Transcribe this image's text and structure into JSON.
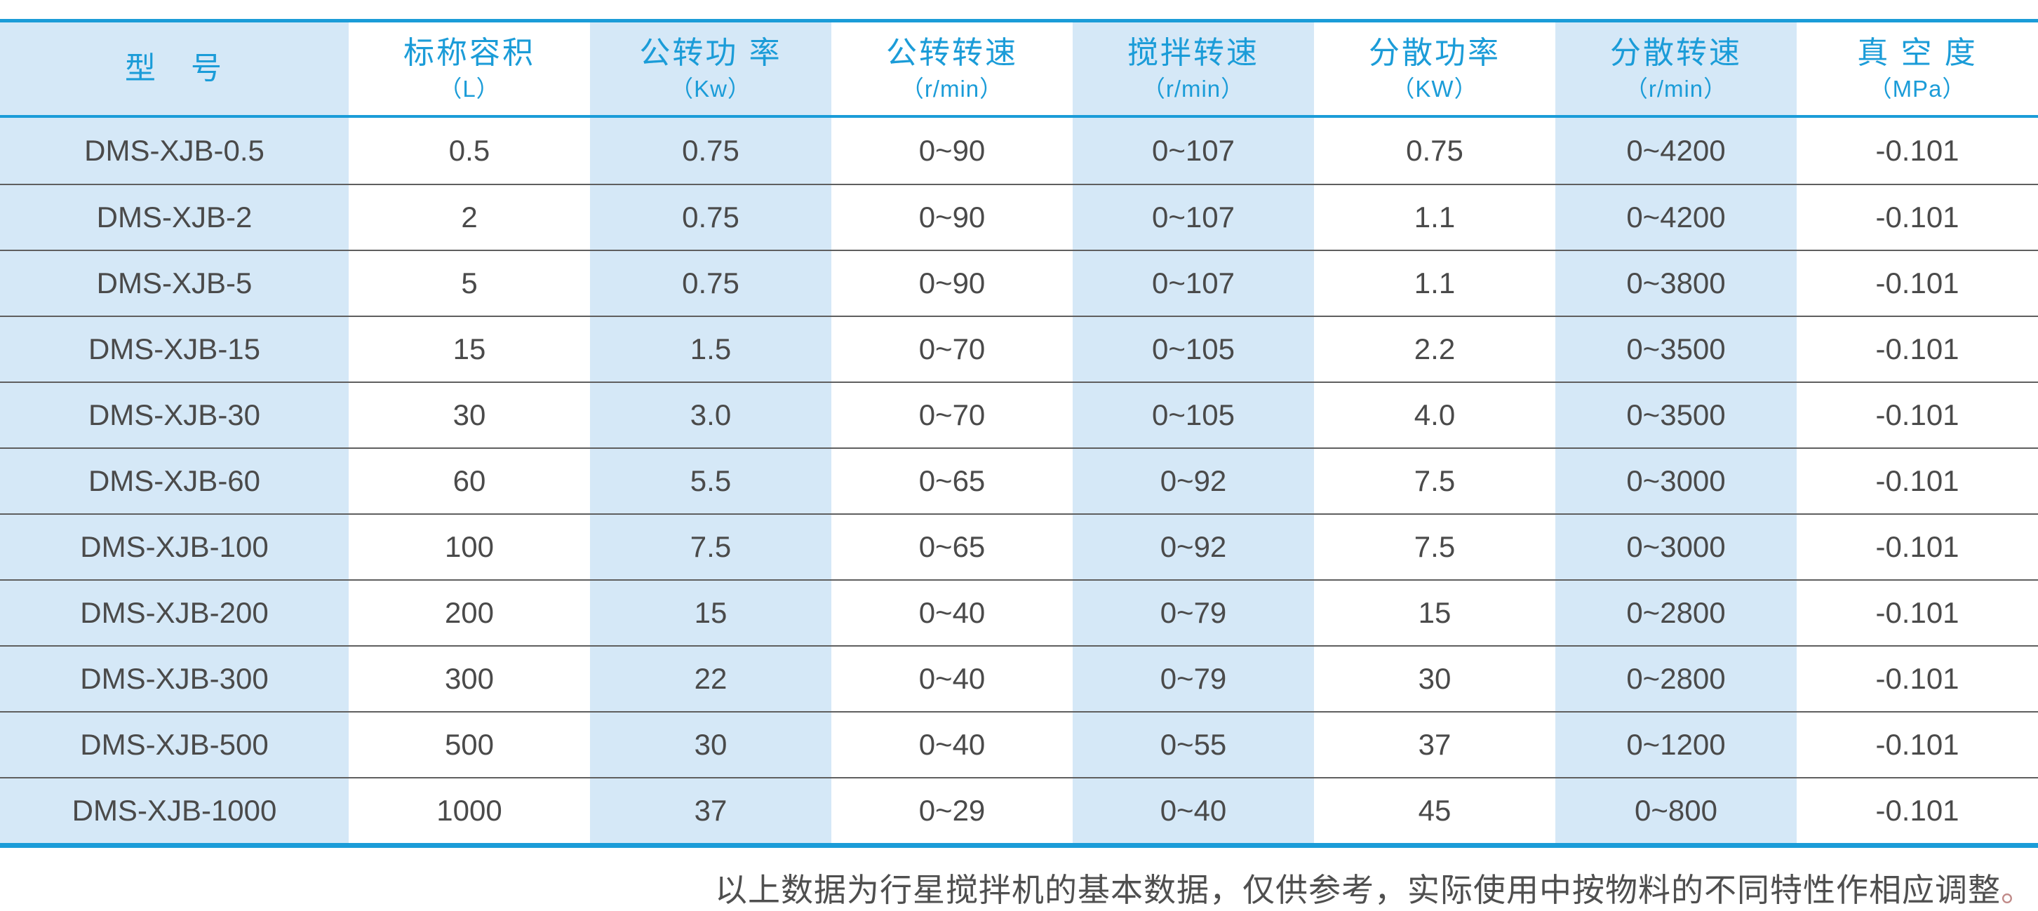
{
  "table": {
    "columns": [
      {
        "label": "型　号",
        "unit": ""
      },
      {
        "label": "标称容积",
        "unit": "（L）"
      },
      {
        "label": "公转功 率",
        "unit": "（Kw）"
      },
      {
        "label": "公转转速",
        "unit": "（r/min）"
      },
      {
        "label": "搅拌转速",
        "unit": "（r/min）"
      },
      {
        "label": "分散功率",
        "unit": "（KW）"
      },
      {
        "label": "分散转速",
        "unit": "（r/min）"
      },
      {
        "label": "真 空 度",
        "unit": "（MPa）"
      }
    ],
    "rows": [
      [
        "DMS-XJB-0.5",
        "0.5",
        "0.75",
        "0~90",
        "0~107",
        "0.75",
        "0~4200",
        "-0.101"
      ],
      [
        "DMS-XJB-2",
        "2",
        "0.75",
        "0~90",
        "0~107",
        "1.1",
        "0~4200",
        "-0.101"
      ],
      [
        "DMS-XJB-5",
        "5",
        "0.75",
        "0~90",
        "0~107",
        "1.1",
        "0~3800",
        "-0.101"
      ],
      [
        "DMS-XJB-15",
        "15",
        "1.5",
        "0~70",
        "0~105",
        "2.2",
        "0~3500",
        "-0.101"
      ],
      [
        "DMS-XJB-30",
        "30",
        "3.0",
        "0~70",
        "0~105",
        "4.0",
        "0~3500",
        "-0.101"
      ],
      [
        "DMS-XJB-60",
        "60",
        "5.5",
        "0~65",
        "0~92",
        "7.5",
        "0~3000",
        "-0.101"
      ],
      [
        "DMS-XJB-100",
        "100",
        "7.5",
        "0~65",
        "0~92",
        "7.5",
        "0~3000",
        "-0.101"
      ],
      [
        "DMS-XJB-200",
        "200",
        "15",
        "0~40",
        "0~79",
        "15",
        "0~2800",
        "-0.101"
      ],
      [
        "DMS-XJB-300",
        "300",
        "22",
        "0~40",
        "0~79",
        "30",
        "0~2800",
        "-0.101"
      ],
      [
        "DMS-XJB-500",
        "500",
        "30",
        "0~40",
        "0~55",
        "37",
        "0~1200",
        "-0.101"
      ],
      [
        "DMS-XJB-1000",
        "1000",
        "37",
        "0~29",
        "0~40",
        "45",
        "0~800",
        "-0.101"
      ]
    ]
  },
  "footer": {
    "note": "以上数据为行星搅拌机的基本数据，仅供参考，实际使用中按物料的不同特性作相应调整",
    "period": "。"
  },
  "colors": {
    "accent_blue": "#1b9cd8",
    "light_blue_column": "#d5e8f7",
    "row_separator_gray": "#5f5f5f",
    "body_text": "#4a4a4a",
    "footer_period_red": "#c08a88"
  }
}
